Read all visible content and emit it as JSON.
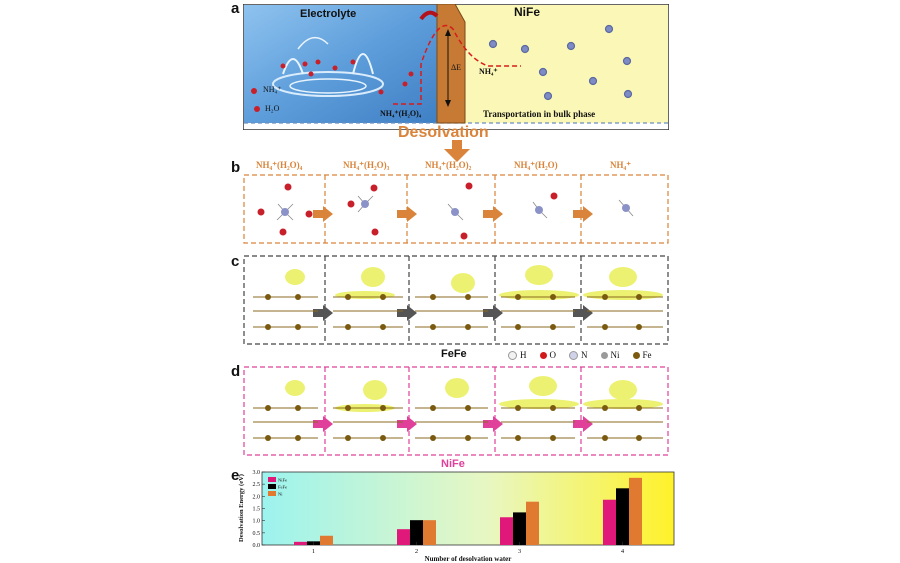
{
  "panels": {
    "a": {
      "letter": "a",
      "electrolyte_label": "Electrolyte",
      "nife_label": "NiFe",
      "nh4_label": "NH₄⁺",
      "h2o_label": "H₂O",
      "complex_label": "NH₄⁺(H₂O)₄",
      "delta_e_label": "ΔE",
      "nh4_ion_label": "NH₄⁺",
      "transport_label": "Transportation in bulk phase",
      "desolvation_label": "Desolvation"
    },
    "b": {
      "letter": "b",
      "stages": [
        "NH₄⁺(H₂O)₄",
        "NH₄⁺(H₂O)₃",
        "NH₄⁺(H₂O)₂",
        "NH₄⁺(H₂O)",
        "NH₄⁺"
      ]
    },
    "c": {
      "letter": "c",
      "caption": "FeFe",
      "legend": [
        {
          "symbol": "H",
          "color": "#f2f2f2"
        },
        {
          "symbol": "O",
          "color": "#d11a1a"
        },
        {
          "symbol": "N",
          "color": "#cfd2e8"
        },
        {
          "symbol": "Ni",
          "color": "#9a9a9a"
        },
        {
          "symbol": "Fe",
          "color": "#7a5a10"
        }
      ]
    },
    "d": {
      "letter": "d",
      "caption": "NiFe"
    },
    "e": {
      "letter": "e"
    }
  },
  "colors": {
    "electrolyte_blue": "#6aa8e0",
    "nife_yellow": "#fbf7b6",
    "desolvation_orange": "#d9843a",
    "panel_c_border": "#444444",
    "panel_d_border": "#e0409a",
    "nife_bar": "#e0187a",
    "fefe_bar": "#000000",
    "ni_bar": "#e07a30"
  },
  "chart_data": {
    "type": "bar",
    "xlabel": "Number of desolvation water",
    "ylabel": "Desolvation Energy (eV)",
    "categories": [
      "1",
      "2",
      "3",
      "4"
    ],
    "ylim": [
      0,
      3.0
    ],
    "yticks": [
      "0.0",
      "0.5",
      "1.0",
      "1.5",
      "2.0",
      "2.5",
      "3.0"
    ],
    "legend_position": "top-left",
    "series": [
      {
        "name": "NiFe",
        "color": "#e0187a",
        "values": [
          0.13,
          0.65,
          1.14,
          1.86
        ]
      },
      {
        "name": "FeFe",
        "color": "#000000",
        "values": [
          0.15,
          1.02,
          1.34,
          2.33
        ]
      },
      {
        "name": "Ni",
        "color": "#e07a30",
        "values": [
          0.38,
          1.02,
          1.78,
          2.76
        ]
      }
    ]
  }
}
